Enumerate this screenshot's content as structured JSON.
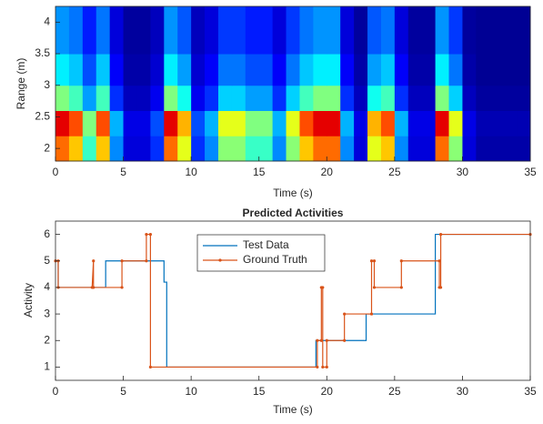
{
  "chart_data": [
    {
      "type": "heatmap",
      "xlabel": "Time (s)",
      "ylabel": "Range (m)",
      "colormap": "jet",
      "xlim": [
        0,
        35
      ],
      "xticks": [
        0,
        5,
        10,
        15,
        20,
        25,
        30,
        35
      ],
      "ylim": [
        1.8,
        4.25
      ],
      "yticks": [
        2,
        2.5,
        3,
        3.5,
        4
      ],
      "x_edges": [
        0,
        1,
        2,
        3,
        4,
        5,
        6,
        7,
        8,
        9,
        10,
        11,
        12,
        13,
        14,
        15,
        16,
        17,
        18,
        19,
        20,
        21,
        22,
        23,
        24,
        25,
        26,
        27,
        28,
        29,
        30,
        31,
        32,
        33,
        34,
        35
      ],
      "y_edges": [
        1.8,
        2.2,
        2.6,
        3.0,
        3.5,
        4.25
      ],
      "z": [
        [
          0.77,
          0.68,
          0.43,
          0.68,
          0.26,
          0.09,
          0.09,
          0.17,
          0.77,
          0.6,
          0.17,
          0.26,
          0.51,
          0.51,
          0.43,
          0.43,
          0.26,
          0.51,
          0.68,
          0.77,
          0.77,
          0.26,
          0.09,
          0.6,
          0.68,
          0.26,
          0.09,
          0.09,
          0.77,
          0.51,
          0.09,
          0.04,
          0.04,
          0.04,
          0.04
        ],
        [
          0.9,
          0.8,
          0.5,
          0.8,
          0.3,
          0.1,
          0.1,
          0.2,
          0.9,
          0.7,
          0.2,
          0.3,
          0.6,
          0.6,
          0.5,
          0.5,
          0.3,
          0.6,
          0.8,
          0.9,
          0.9,
          0.3,
          0.1,
          0.7,
          0.8,
          0.3,
          0.1,
          0.1,
          0.9,
          0.6,
          0.1,
          0.05,
          0.05,
          0.05,
          0.05
        ],
        [
          0.5,
          0.44,
          0.28,
          0.44,
          0.17,
          0.06,
          0.06,
          0.11,
          0.5,
          0.39,
          0.11,
          0.17,
          0.33,
          0.33,
          0.28,
          0.28,
          0.17,
          0.33,
          0.44,
          0.5,
          0.5,
          0.17,
          0.06,
          0.39,
          0.44,
          0.17,
          0.06,
          0.06,
          0.5,
          0.33,
          0.06,
          0.03,
          0.03,
          0.03,
          0.03
        ],
        [
          0.36,
          0.32,
          0.2,
          0.32,
          0.12,
          0.04,
          0.04,
          0.08,
          0.36,
          0.28,
          0.08,
          0.12,
          0.24,
          0.24,
          0.2,
          0.2,
          0.12,
          0.24,
          0.32,
          0.36,
          0.36,
          0.12,
          0.04,
          0.28,
          0.32,
          0.12,
          0.04,
          0.04,
          0.36,
          0.24,
          0.04,
          0.02,
          0.02,
          0.02,
          0.02
        ],
        [
          0.27,
          0.24,
          0.15,
          0.24,
          0.09,
          0.03,
          0.03,
          0.06,
          0.27,
          0.21,
          0.06,
          0.09,
          0.18,
          0.18,
          0.15,
          0.15,
          0.09,
          0.18,
          0.24,
          0.27,
          0.27,
          0.09,
          0.03,
          0.21,
          0.24,
          0.09,
          0.03,
          0.03,
          0.27,
          0.18,
          0.03,
          0.02,
          0.02,
          0.02,
          0.02
        ]
      ]
    },
    {
      "type": "line",
      "title": "Predicted Activities",
      "xlabel": "Time (s)",
      "ylabel": "Activity",
      "xlim": [
        0,
        35
      ],
      "xticks": [
        0,
        5,
        10,
        15,
        20,
        25,
        30,
        35
      ],
      "ylim": [
        0.5,
        6.5
      ],
      "yticks": [
        1,
        2,
        3,
        4,
        5,
        6
      ],
      "legend": "north",
      "series": [
        {
          "name": "Test Data",
          "color": "#0072bd",
          "marker": false,
          "x": [
            0,
            0.2,
            0.2,
            3.7,
            3.7,
            8.0,
            8.0,
            8.2,
            8.2,
            19.2,
            19.2,
            22.9,
            22.9,
            28.0,
            28.0,
            35
          ],
          "values": [
            5,
            5,
            4,
            4,
            5,
            5,
            4.2,
            4.2,
            1,
            1,
            2,
            2,
            3,
            3,
            6,
            6
          ]
        },
        {
          "name": "Ground Truth",
          "color": "#d95319",
          "marker": true,
          "x": [
            0,
            0.2,
            0.2,
            2.7,
            2.8,
            2.8,
            4.9,
            4.9,
            6.7,
            6.7,
            7.0,
            7.0,
            19.3,
            19.3,
            19.6,
            19.6,
            19.7,
            19.7,
            20.0,
            20.0,
            21.3,
            21.3,
            23.3,
            23.3,
            23.5,
            23.5,
            25.5,
            25.5,
            28.3,
            28.3,
            28.4,
            28.4,
            35
          ],
          "values": [
            5,
            5,
            4,
            4,
            5,
            4,
            4,
            5,
            5,
            6,
            6,
            1,
            1,
            2,
            2,
            4,
            4,
            1,
            1,
            2,
            2,
            3,
            3,
            5,
            5,
            4,
            4,
            5,
            5,
            4,
            4,
            6,
            6
          ]
        }
      ]
    }
  ]
}
